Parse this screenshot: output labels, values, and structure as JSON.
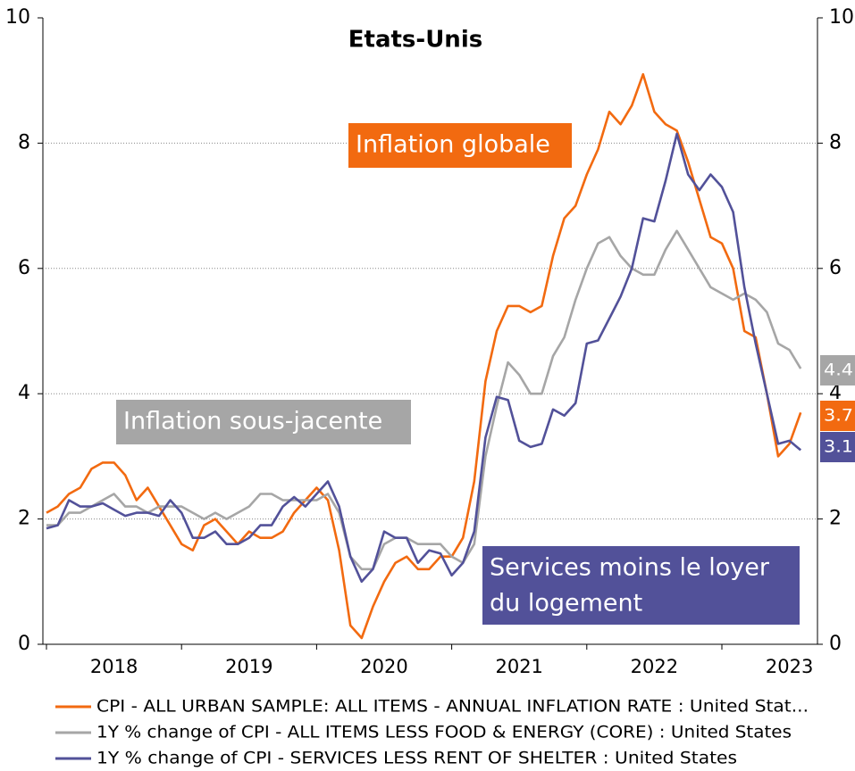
{
  "chart_data": {
    "type": "line",
    "title": "Etats-Unis",
    "categories": [
      null,
      null,
      null,
      null,
      null,
      null,
      "2018",
      null,
      null,
      null,
      null,
      null,
      null,
      null,
      null,
      null,
      null,
      null,
      "2019",
      null,
      null,
      null,
      null,
      null,
      null,
      null,
      null,
      null,
      null,
      null,
      "2020",
      null,
      null,
      null,
      null,
      null,
      null,
      null,
      null,
      null,
      null,
      null,
      "2021",
      null,
      null,
      null,
      null,
      null,
      null,
      null,
      null,
      null,
      null,
      null,
      "2022",
      null,
      null,
      null,
      null,
      null,
      null,
      null,
      null,
      null,
      null,
      null,
      "2023",
      null
    ],
    "ylim": [
      0,
      10
    ],
    "yticks": [
      0,
      2,
      4,
      6,
      8,
      10
    ],
    "y2lim": [
      0,
      10
    ],
    "y2ticks": [
      0,
      2,
      4,
      6,
      8,
      10
    ],
    "grid": true,
    "series": [
      {
        "name": "CPI - ALL URBAN SAMPLE: ALL ITEMS - ANNUAL INFLATION RATE : United Stat...",
        "color": "#f26a10",
        "end_label": "3.7",
        "values": [
          2.1,
          2.2,
          2.4,
          2.5,
          2.8,
          2.9,
          2.9,
          2.7,
          2.3,
          2.5,
          2.2,
          1.9,
          1.6,
          1.5,
          1.9,
          2.0,
          1.8,
          1.6,
          1.8,
          1.7,
          1.7,
          1.8,
          2.1,
          2.3,
          2.5,
          2.3,
          1.5,
          0.3,
          0.1,
          0.6,
          1.0,
          1.3,
          1.4,
          1.2,
          1.2,
          1.4,
          1.4,
          1.7,
          2.6,
          4.2,
          5.0,
          5.4,
          5.4,
          5.3,
          5.4,
          6.2,
          6.8,
          7.0,
          7.5,
          7.9,
          8.5,
          8.3,
          8.6,
          9.1,
          8.5,
          8.3,
          8.2,
          7.7,
          7.1,
          6.5,
          6.4,
          6.0,
          5.0,
          4.9,
          4.0,
          3.0,
          3.2,
          3.7
        ]
      },
      {
        "name": "1Y % change of CPI - ALL ITEMS LESS FOOD & ENERGY (CORE) : United States",
        "color": "#a6a6a6",
        "end_label": "4.4",
        "values": [
          1.9,
          1.9,
          2.1,
          2.1,
          2.2,
          2.3,
          2.4,
          2.2,
          2.2,
          2.1,
          2.2,
          2.2,
          2.2,
          2.1,
          2.0,
          2.1,
          2.0,
          2.1,
          2.2,
          2.4,
          2.4,
          2.3,
          2.3,
          2.3,
          2.3,
          2.4,
          2.1,
          1.4,
          1.2,
          1.2,
          1.6,
          1.7,
          1.7,
          1.6,
          1.6,
          1.6,
          1.4,
          1.3,
          1.6,
          3.0,
          3.8,
          4.5,
          4.3,
          4.0,
          4.0,
          4.6,
          4.9,
          5.5,
          6.0,
          6.4,
          6.5,
          6.2,
          6.0,
          5.9,
          5.9,
          6.3,
          6.6,
          6.3,
          6.0,
          5.7,
          5.6,
          5.5,
          5.6,
          5.5,
          5.3,
          4.8,
          4.7,
          4.4
        ]
      },
      {
        "name": "1Y % change of CPI - SERVICES LESS RENT OF SHELTER : United States",
        "color": "#525199",
        "end_label": "3.1",
        "values": [
          1.85,
          1.9,
          2.3,
          2.2,
          2.2,
          2.25,
          2.15,
          2.05,
          2.1,
          2.1,
          2.05,
          2.3,
          2.1,
          1.7,
          1.7,
          1.8,
          1.6,
          1.6,
          1.7,
          1.9,
          1.9,
          2.2,
          2.35,
          2.2,
          2.4,
          2.6,
          2.2,
          1.4,
          1.0,
          1.2,
          1.8,
          1.7,
          1.7,
          1.3,
          1.5,
          1.45,
          1.1,
          1.3,
          1.8,
          3.3,
          3.95,
          3.9,
          3.25,
          3.15,
          3.2,
          3.75,
          3.65,
          3.85,
          4.8,
          4.85,
          5.2,
          5.55,
          6.0,
          6.8,
          6.75,
          7.4,
          8.15,
          7.5,
          7.25,
          7.5,
          7.3,
          6.9,
          5.7,
          4.8,
          4.0,
          3.2,
          3.25,
          3.1
        ]
      }
    ],
    "annotations": [
      {
        "lines": [
          "Inflation globale"
        ],
        "color": "#f26a10"
      },
      {
        "lines": [
          "Inflation sous-jacente"
        ],
        "color": "#a6a6a6"
      },
      {
        "lines": [
          "Services moins le loyer",
          "du logement"
        ],
        "color": "#525199"
      }
    ]
  }
}
